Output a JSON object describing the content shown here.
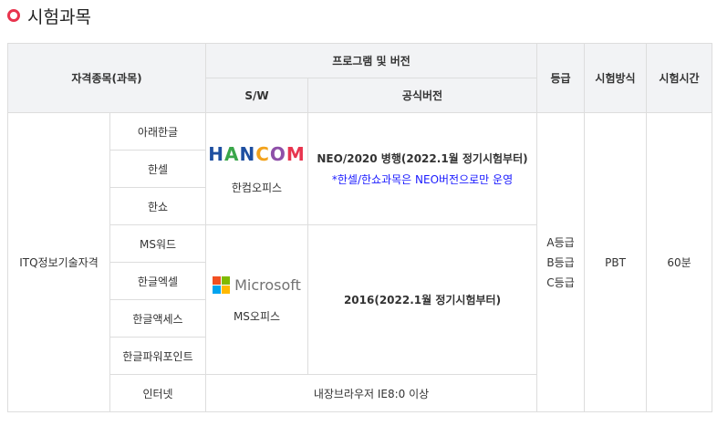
{
  "section_title": "시험과목",
  "header": {
    "subject": "자격종목(과목)",
    "program": "프로그램 및 버전",
    "sw": "S/W",
    "version": "공식버전",
    "grade": "등급",
    "method": "시험방식",
    "time": "시험시간"
  },
  "qualification": "ITQ정보기술자격",
  "subjects": [
    "아래한글",
    "한셀",
    "한쇼",
    "MS워드",
    "한글엑셀",
    "한글액세스",
    "한글파워포인트",
    "인터넷"
  ],
  "hancom": {
    "logo_text": "HANCOM",
    "name": "한컴오피스",
    "version": "NEO/2020 병행(2022.1월 정기시험부터)",
    "note": "*한셀/한쇼과목은 NEO버전으로만 운영",
    "logo_colors": [
      "#1e4fa0",
      "#e8344e",
      "#3aa64a",
      "#1e88c8",
      "#8e4fa8",
      "#f2a21c"
    ]
  },
  "microsoft": {
    "logo_text": "Microsoft",
    "name": "MS오피스",
    "version": "2016(2022.1월 정기시험부터)",
    "logo_colors": [
      "#f25022",
      "#7fba00",
      "#00a4ef",
      "#ffb900"
    ]
  },
  "internet": "내장브라우저 IE8:0 이상",
  "grades": [
    "A등급",
    "B등급",
    "C등급"
  ],
  "method": "PBT",
  "time": "60분"
}
